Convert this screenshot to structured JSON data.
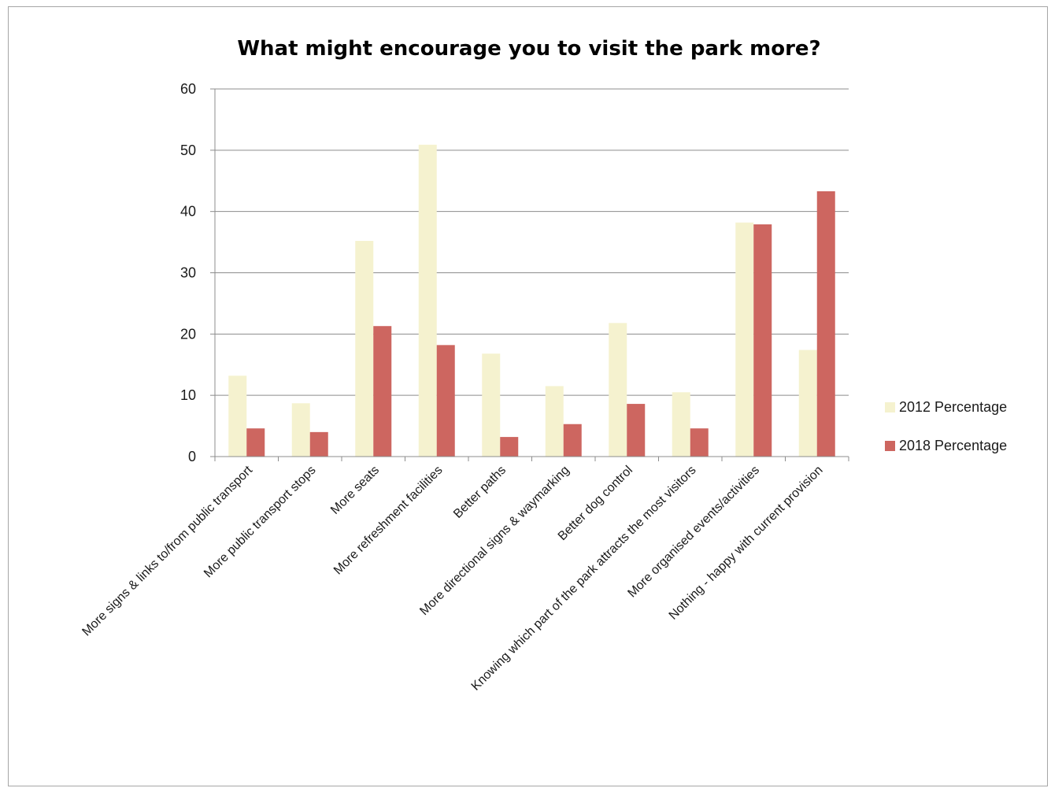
{
  "chart_data": {
    "type": "bar",
    "title": "What might encourage you to visit the park more?",
    "xlabel": "",
    "ylabel": "",
    "ylim": [
      0,
      60
    ],
    "yticks": [
      0,
      10,
      20,
      30,
      40,
      50,
      60
    ],
    "grid": true,
    "legend_position": "right",
    "categories": [
      "More signs & links to/from public transport",
      "More public transport stops",
      "More seats",
      "More refreshment facilities",
      "Better paths",
      "More directional signs & waymarking",
      "Better dog control",
      "Knowing which part of the park attracts the most visitors",
      "More organised events/activities",
      "Nothing - happy with current provision"
    ],
    "series": [
      {
        "name": "2012 Percentage",
        "color": "#f5f2cf",
        "values": [
          13.2,
          8.7,
          35.2,
          50.9,
          16.8,
          11.5,
          21.8,
          10.5,
          38.2,
          17.4
        ]
      },
      {
        "name": "2018 Percentage",
        "color": "#cd6660",
        "values": [
          4.6,
          4.0,
          21.3,
          18.2,
          3.2,
          5.3,
          8.6,
          4.6,
          37.9,
          43.3
        ]
      }
    ]
  }
}
